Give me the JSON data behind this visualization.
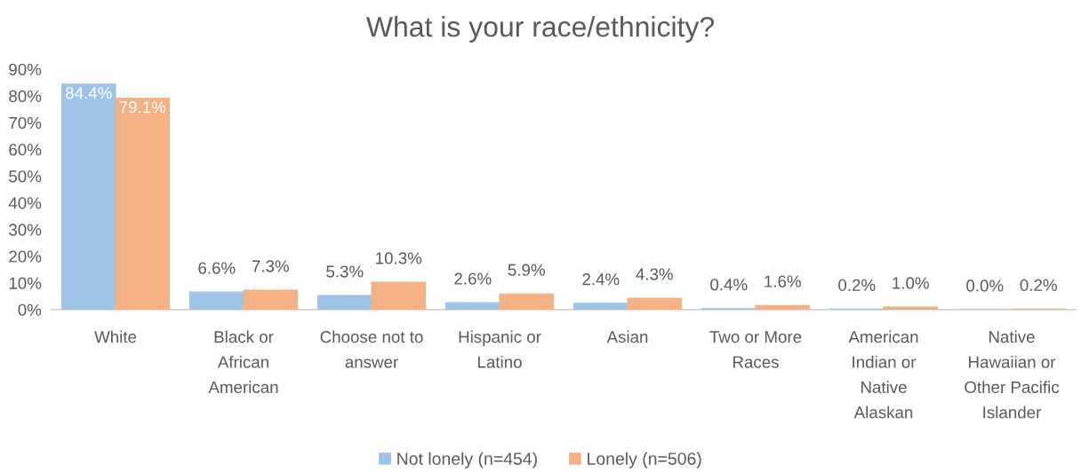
{
  "chart_data": {
    "type": "bar",
    "title": "What is your race/ethnicity?",
    "categories": [
      "White",
      "Black or\nAfrican\nAmerican",
      "Choose not to\nanswer",
      "Hispanic or\nLatino",
      "Asian",
      "Two or More\nRaces",
      "American\nIndian or\nNative\nAlaskan",
      "Native\nHawaiian or\nOther Pacific\nIslander"
    ],
    "series": [
      {
        "name": "Not lonely (n=454)",
        "color": "#9dc3e6",
        "values": [
          84.4,
          6.6,
          5.3,
          2.6,
          2.4,
          0.4,
          0.2,
          0.0
        ],
        "value_labels": [
          "84.4%",
          "6.6%",
          "5.3%",
          "2.6%",
          "2.4%",
          "0.4%",
          "0.2%",
          "0.0%"
        ]
      },
      {
        "name": "Lonely (n=506)",
        "color": "#f4b183",
        "values": [
          79.1,
          7.3,
          10.3,
          5.9,
          4.3,
          1.6,
          1.0,
          0.2
        ],
        "value_labels": [
          "79.1%",
          "7.3%",
          "10.3%",
          "5.9%",
          "4.3%",
          "1.6%",
          "1.0%",
          "0.2%"
        ]
      }
    ],
    "ylim": [
      0,
      90
    ],
    "yticks": [
      {
        "value": 0,
        "label": "0%"
      },
      {
        "value": 10,
        "label": "10%"
      },
      {
        "value": 20,
        "label": "20%"
      },
      {
        "value": 30,
        "label": "30%"
      },
      {
        "value": 40,
        "label": "40%"
      },
      {
        "value": 50,
        "label": "50%"
      },
      {
        "value": 60,
        "label": "60%"
      },
      {
        "value": 70,
        "label": "70%"
      },
      {
        "value": 80,
        "label": "80%"
      },
      {
        "value": 90,
        "label": "90%"
      }
    ],
    "grid": false,
    "legend": "bottom"
  }
}
